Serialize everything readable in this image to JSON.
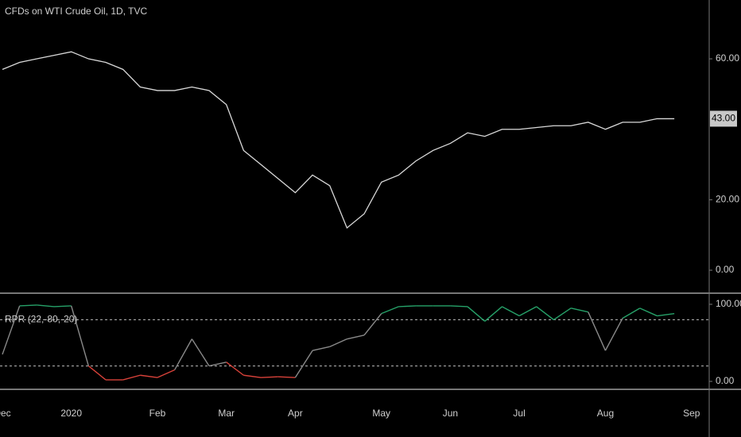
{
  "chart_data": [
    {
      "type": "line",
      "title": "CFDs on WTI Crude Oil, 1D, TVC",
      "color": "#d9d9d9",
      "values": [
        57,
        59,
        60,
        61,
        62,
        60,
        59,
        57,
        52,
        51,
        51,
        52,
        51,
        47,
        34,
        30,
        26,
        22,
        27,
        24,
        12,
        16,
        25,
        27,
        31,
        34,
        36,
        39,
        38,
        40,
        40,
        40.5,
        41,
        41,
        42,
        40,
        42,
        42,
        43,
        43,
        null
      ],
      "ylim": [
        -6.3,
        76.7
      ],
      "yticks": [
        {
          "value": 0,
          "label": "0.00"
        },
        {
          "value": 20,
          "label": "20.00"
        },
        {
          "value": 60,
          "label": "60.00"
        }
      ],
      "price_marker": {
        "value": 43,
        "label": "43.00"
      },
      "grid": false
    },
    {
      "type": "oscillator",
      "title": "RPR (22,-80,-20)",
      "categories": [
        "Dec",
        null,
        null,
        null,
        "2020",
        null,
        null,
        null,
        null,
        "Feb",
        null,
        null,
        null,
        "Mar",
        null,
        null,
        null,
        "Apr",
        null,
        null,
        null,
        null,
        "May",
        null,
        null,
        null,
        "Jun",
        null,
        null,
        null,
        "Jul",
        null,
        null,
        null,
        null,
        "Aug",
        null,
        null,
        null,
        null,
        "Sep"
      ],
      "values": [
        35,
        98,
        99,
        97,
        98,
        20,
        2,
        2,
        8,
        5,
        15,
        55,
        20,
        25,
        8,
        5,
        6,
        5,
        40,
        45,
        55,
        60,
        88,
        97,
        98,
        98,
        98,
        97,
        78,
        97,
        85,
        97,
        80,
        95,
        90,
        40,
        82,
        95,
        85,
        88,
        null
      ],
      "ylim": [
        -10.3,
        113.4
      ],
      "yticks": [
        {
          "value": 0,
          "label": "0.00"
        },
        {
          "value": 100,
          "label": "100.00"
        }
      ],
      "levels": [
        80,
        20
      ],
      "above_color": "#26a269",
      "below_color": "#d9423a",
      "mid_color": "#8a8a8a",
      "grid": false
    }
  ]
}
